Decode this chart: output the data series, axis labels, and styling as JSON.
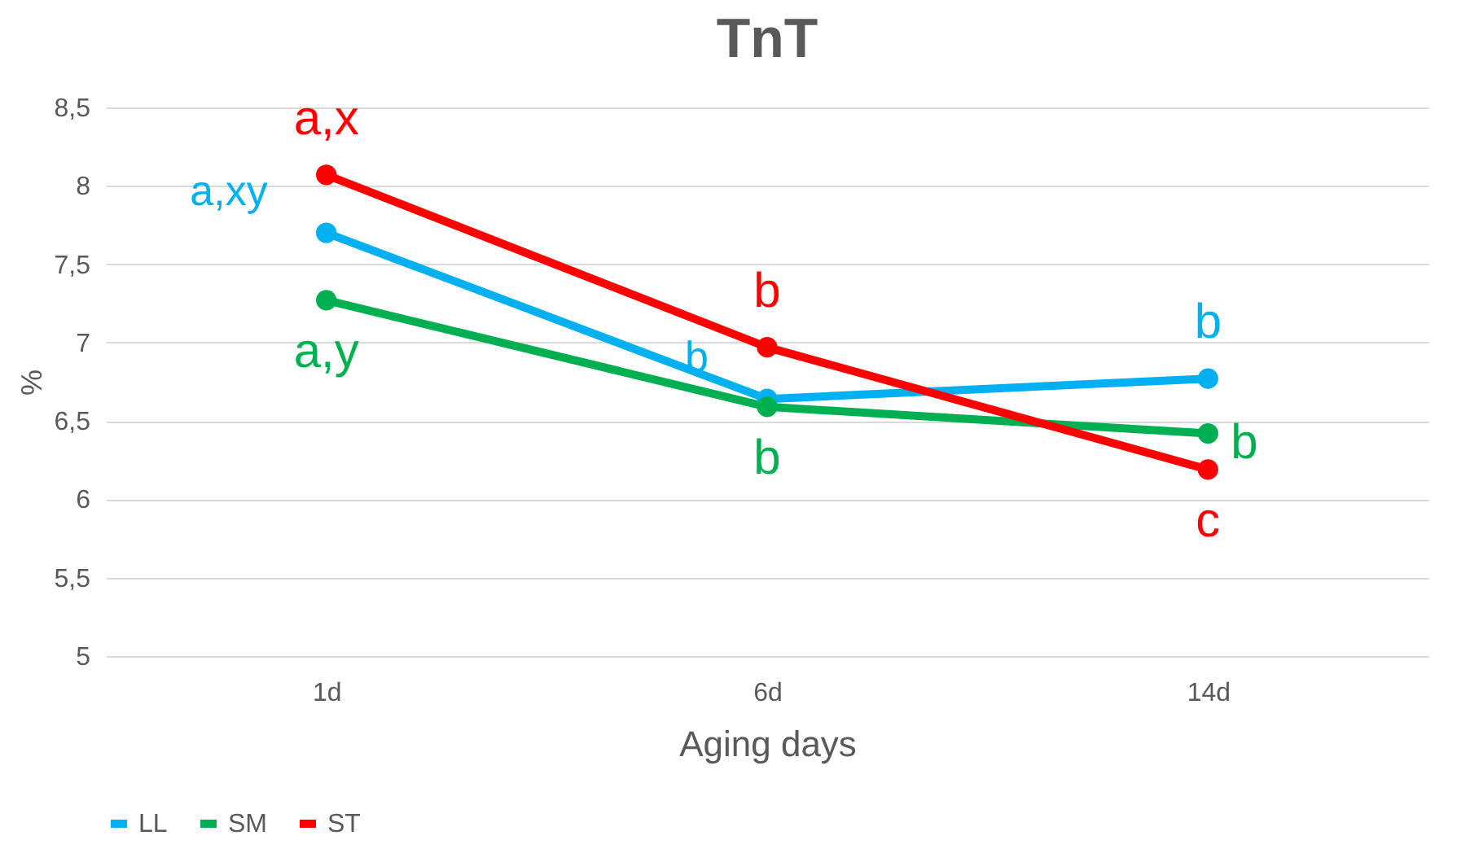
{
  "chart_data": {
    "type": "line",
    "title": "TnT",
    "xlabel": "Aging days",
    "ylabel": "%",
    "categories": [
      "1d",
      "6d",
      "14d"
    ],
    "series": [
      {
        "name": "LL",
        "color": "#00b0f0",
        "values": [
          7.7,
          6.64,
          6.77
        ]
      },
      {
        "name": "SM",
        "color": "#00b050",
        "values": [
          7.27,
          6.59,
          6.42
        ]
      },
      {
        "name": "ST",
        "color": "#ff0000",
        "values": [
          8.07,
          6.97,
          6.19
        ]
      }
    ],
    "ylim": [
      5,
      8.5
    ],
    "yticks": [
      {
        "value": 5,
        "label": "5"
      },
      {
        "value": 5.5,
        "label": "5,5"
      },
      {
        "value": 6,
        "label": "6"
      },
      {
        "value": 6.5,
        "label": "6,5"
      },
      {
        "value": 7,
        "label": "7"
      },
      {
        "value": 7.5,
        "label": "7,5"
      },
      {
        "value": 8,
        "label": "8"
      },
      {
        "value": 8.5,
        "label": "8,5"
      }
    ],
    "grid": "y",
    "legend": "bottom",
    "marker": "circle",
    "line_style": "solid",
    "annotations": [
      {
        "text": "a,x",
        "x": "1d",
        "y": 8.07
      },
      {
        "text": "a,xy",
        "x": "1d",
        "y": 7.7
      },
      {
        "text": "a,y",
        "x": "1d",
        "y": 7.27
      },
      {
        "text": "b",
        "x": "6d",
        "y": 6.97
      },
      {
        "text": "b",
        "x": "6d",
        "y": 6.64
      },
      {
        "text": "b",
        "x": "6d",
        "y": 6.59
      },
      {
        "text": "b",
        "x": "14d",
        "y": 6.77
      },
      {
        "text": "b",
        "x": "14d",
        "y": 6.42
      },
      {
        "text": "c",
        "x": "14d",
        "y": 6.19
      }
    ]
  }
}
